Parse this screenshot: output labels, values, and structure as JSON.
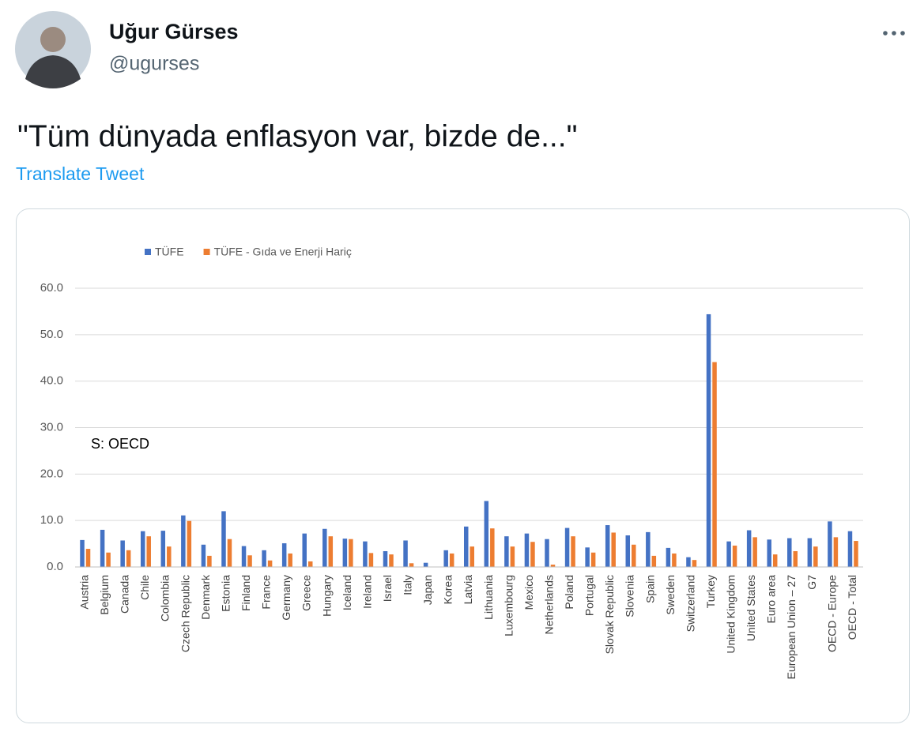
{
  "author": {
    "name": "Uğur Gürses",
    "handle": "@ugurses"
  },
  "tweet": {
    "text": "\"Tüm dünyada enflasyon var, bizde de...\"",
    "translate": "Translate Tweet"
  },
  "chart_data": {
    "type": "bar",
    "annotation": "S: OECD",
    "categories": [
      "Austria",
      "Belgium",
      "Canada",
      "Chile",
      "Colombia",
      "Czech Republic",
      "Denmark",
      "Estonia",
      "Finland",
      "France",
      "Germany",
      "Greece",
      "Hungary",
      "Iceland",
      "Ireland",
      "Israel",
      "Italy",
      "Japan",
      "Korea",
      "Latvia",
      "Lithuania",
      "Luxembourg",
      "Mexico",
      "Netherlands",
      "Poland",
      "Portugal",
      "Slovak Republic",
      "Slovenia",
      "Spain",
      "Sweden",
      "Switzerland",
      "Turkey",
      "United Kingdom",
      "United States",
      "Euro area",
      "European Union – 27",
      "G7",
      "OECD - Europe",
      "OECD - Total"
    ],
    "series": [
      {
        "name": "TÜFE",
        "color": "#4472c4",
        "values": [
          5.8,
          8.0,
          5.7,
          7.7,
          7.8,
          11.1,
          4.8,
          12.0,
          4.5,
          3.6,
          5.1,
          7.2,
          8.2,
          6.1,
          5.5,
          3.4,
          5.7,
          0.9,
          3.6,
          8.7,
          14.2,
          6.6,
          7.2,
          6.0,
          8.4,
          4.2,
          9.0,
          6.8,
          7.5,
          4.1,
          2.1,
          54.4,
          5.5,
          7.9,
          5.9,
          6.2,
          6.2,
          9.8,
          7.7
        ]
      },
      {
        "name": "TÜFE - Gıda ve Enerji Hariç",
        "color": "#ed7d31",
        "values": [
          3.9,
          3.1,
          3.6,
          6.6,
          4.4,
          9.9,
          2.4,
          6.0,
          2.5,
          1.4,
          2.9,
          1.2,
          6.6,
          6.0,
          3.0,
          2.7,
          0.8,
          0,
          2.9,
          4.4,
          8.3,
          4.4,
          5.4,
          0.5,
          6.6,
          3.1,
          7.4,
          4.8,
          2.4,
          2.9,
          1.5,
          44.1,
          4.6,
          6.4,
          2.7,
          3.4,
          4.4,
          6.4,
          5.6
        ]
      }
    ],
    "ylim": [
      0,
      60
    ],
    "yticks": [
      {
        "value": 0,
        "label": "0.0"
      },
      {
        "value": 10,
        "label": "10.0"
      },
      {
        "value": 20,
        "label": "20.0"
      },
      {
        "value": 30,
        "label": "30.0"
      },
      {
        "value": 40,
        "label": "40.0"
      },
      {
        "value": 50,
        "label": "50.0"
      },
      {
        "value": 60,
        "label": "60.0"
      }
    ],
    "grid": true,
    "legend": "top-left"
  }
}
